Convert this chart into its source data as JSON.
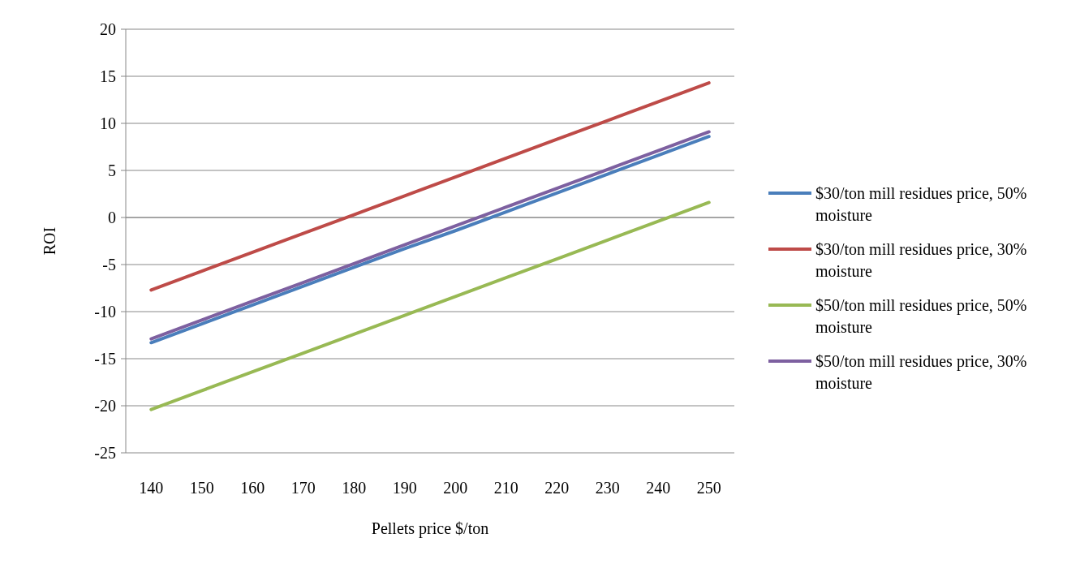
{
  "chart_data": {
    "type": "line",
    "xlabel": "Pellets price $/ton",
    "ylabel": "ROI",
    "categories": [
      "140",
      "150",
      "160",
      "170",
      "180",
      "190",
      "200",
      "210",
      "220",
      "230",
      "240",
      "250"
    ],
    "ylim": [
      -25,
      20
    ],
    "yticks": [
      -25,
      -20,
      -15,
      -10,
      -5,
      0,
      5,
      10,
      15,
      20
    ],
    "grid": "y",
    "legend": "right",
    "marker": "none",
    "line_style": "solid",
    "series": [
      {
        "name": "$30/ton mill residues price, 50% moisture",
        "color": "#4a7ebb",
        "values": [
          -13.3,
          -11.3,
          -9.3,
          -7.3,
          -5.3,
          -3.3,
          -1.4,
          0.6,
          2.6,
          4.6,
          6.6,
          8.6
        ]
      },
      {
        "name": "$30/ton mill residues price, 30% moisture",
        "color": "#be4b48",
        "values": [
          -7.7,
          -5.7,
          -3.7,
          -1.7,
          0.3,
          2.3,
          4.3,
          6.3,
          8.3,
          10.3,
          12.3,
          14.3
        ]
      },
      {
        "name": "$50/ton mill residues price, 50% moisture",
        "color": "#98b954",
        "values": [
          -20.4,
          -18.4,
          -16.4,
          -14.4,
          -12.4,
          -10.4,
          -8.4,
          -6.4,
          -4.4,
          -2.4,
          -0.4,
          1.6
        ]
      },
      {
        "name": "$50/ton mill residues price, 30% moisture",
        "color": "#7d60a0",
        "values": [
          -12.9,
          -10.9,
          -8.9,
          -6.9,
          -4.9,
          -2.9,
          -0.9,
          1.1,
          3.1,
          5.1,
          7.1,
          9.1
        ]
      }
    ]
  }
}
